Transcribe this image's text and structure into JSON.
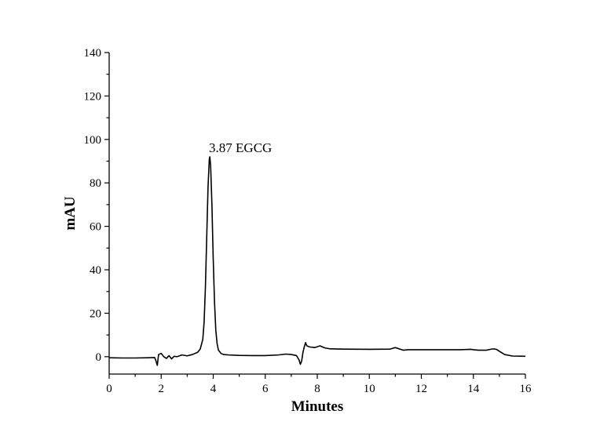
{
  "chart_data": {
    "type": "line",
    "title": "",
    "xlabel": "Minutes",
    "ylabel": "mAU",
    "xlim": [
      0,
      16
    ],
    "ylim": [
      -8,
      140
    ],
    "xticks": [
      0,
      2,
      4,
      6,
      8,
      10,
      12,
      14,
      16
    ],
    "xtick_labels": [
      "0",
      "2",
      "4",
      "6",
      "8",
      "10",
      "12",
      "14",
      "16"
    ],
    "yticks": [
      0,
      20,
      40,
      60,
      80,
      100,
      120,
      140
    ],
    "ytick_labels": [
      "0",
      "20",
      "40",
      "60",
      "80",
      "100",
      "120",
      "140"
    ],
    "grid": false,
    "legend": "none",
    "annotations": [
      {
        "text": "3.87 EGCG",
        "x": 3.87,
        "y": 92
      }
    ],
    "series": [
      {
        "x": [
          0,
          0.5,
          1.0,
          1.5,
          1.75,
          1.8,
          1.85,
          1.9,
          2.0,
          2.1,
          2.2,
          2.3,
          2.4,
          2.5,
          2.6,
          2.8,
          3.0,
          3.2,
          3.4,
          3.5,
          3.6,
          3.65,
          3.7,
          3.75,
          3.8,
          3.85,
          3.87,
          3.9,
          3.95,
          4.0,
          4.05,
          4.1,
          4.15,
          4.2,
          4.3,
          4.4,
          4.6,
          5.0,
          5.5,
          6.0,
          6.5,
          6.8,
          7.0,
          7.2,
          7.3,
          7.35,
          7.4,
          7.45,
          7.5,
          7.55,
          7.6,
          7.7,
          7.9,
          8.1,
          8.3,
          8.5,
          9.0,
          10.0,
          10.8,
          11.0,
          11.1,
          11.3,
          11.5,
          12.0,
          13.0,
          13.5,
          13.9,
          14.0,
          14.2,
          14.5,
          14.7,
          14.8,
          14.9,
          15.0,
          15.2,
          15.5,
          16.0
        ],
        "y": [
          -0.5,
          -0.6,
          -0.6,
          -0.5,
          -0.4,
          -2.0,
          -4.0,
          1.0,
          1.5,
          0.0,
          -0.8,
          0.5,
          -1.0,
          0.2,
          0.0,
          0.8,
          0.4,
          1.0,
          2.0,
          3.5,
          8.0,
          16.0,
          32.0,
          55.0,
          78.0,
          91.0,
          92.0,
          88.0,
          70.0,
          45.0,
          25.0,
          12.0,
          6.0,
          3.0,
          1.5,
          1.0,
          0.8,
          0.6,
          0.5,
          0.5,
          0.8,
          1.2,
          1.0,
          0.5,
          -1.5,
          -3.5,
          -2.0,
          2.0,
          4.5,
          6.5,
          5.0,
          4.5,
          4.2,
          5.0,
          4.0,
          3.6,
          3.5,
          3.4,
          3.5,
          4.2,
          3.8,
          3.0,
          3.2,
          3.2,
          3.2,
          3.2,
          3.4,
          3.2,
          3.0,
          3.0,
          3.5,
          3.6,
          3.3,
          2.5,
          1.0,
          0.3,
          0.2
        ]
      }
    ]
  }
}
